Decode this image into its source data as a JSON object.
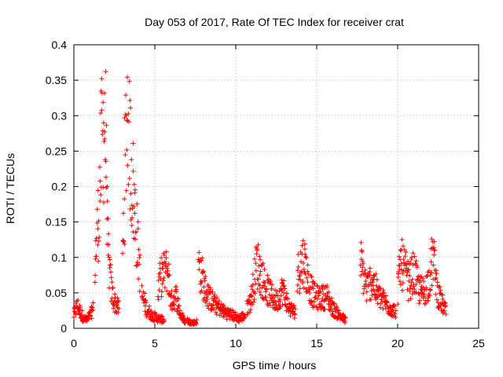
{
  "chart_data": {
    "type": "scatter",
    "title": "Day 053 of 2017, Rate Of TEC Index for receiver crat",
    "xlabel": "GPS time / hours",
    "ylabel": "ROTI / TECUs",
    "xlim": [
      0,
      25
    ],
    "ylim": [
      0,
      0.4
    ],
    "x_ticks": [
      "0",
      "5",
      "10",
      "15",
      "20",
      "25"
    ],
    "y_ticks": [
      "0",
      "0.05",
      "0.1",
      "0.15",
      "0.2",
      "0.25",
      "0.3",
      "0.35",
      "0.4"
    ],
    "grid": true,
    "marker": "plus",
    "marker_color": "#ff0000",
    "segments": [
      {
        "x": [
          0.0,
          0.2,
          0.4,
          0.6,
          0.8,
          1.0,
          1.2
        ],
        "y": [
          0.02,
          0.035,
          0.025,
          0.015,
          0.012,
          0.02,
          0.03
        ]
      },
      {
        "x": [
          1.3,
          1.5,
          1.7,
          1.8,
          1.9,
          2.0,
          2.1,
          2.3,
          2.5,
          2.8
        ],
        "y": [
          0.1,
          0.16,
          0.27,
          0.3,
          0.33,
          0.25,
          0.12,
          0.06,
          0.04,
          0.03
        ]
      },
      {
        "x": [
          3.0,
          3.2,
          3.35,
          3.5,
          3.7,
          3.9,
          4.1
        ],
        "y": [
          0.1,
          0.28,
          0.355,
          0.26,
          0.2,
          0.14,
          0.08
        ]
      },
      {
        "x": [
          4.2,
          4.5,
          4.8,
          5.2,
          5.6
        ],
        "y": [
          0.05,
          0.03,
          0.02,
          0.015,
          0.012
        ]
      },
      {
        "x": [
          5.2,
          5.4,
          5.8,
          6.0,
          6.3,
          6.6,
          6.9
        ],
        "y": [
          0.06,
          0.08,
          0.09,
          0.04,
          0.05,
          0.02,
          0.01
        ]
      },
      {
        "x": [
          7.0,
          7.3,
          7.6
        ],
        "y": [
          0.012,
          0.008,
          0.01
        ]
      },
      {
        "x": [
          7.7,
          7.9,
          8.1,
          8.4,
          8.8,
          9.3,
          9.8,
          10.2,
          10.6
        ],
        "y": [
          0.1,
          0.08,
          0.06,
          0.045,
          0.035,
          0.025,
          0.02,
          0.015,
          0.02
        ]
      },
      {
        "x": [
          10.7,
          11.0,
          11.3,
          11.6,
          11.9,
          12.2,
          12.5,
          12.9,
          13.3,
          13.7
        ],
        "y": [
          0.03,
          0.05,
          0.1,
          0.08,
          0.06,
          0.05,
          0.04,
          0.06,
          0.03,
          0.025
        ]
      },
      {
        "x": [
          13.8,
          14.0,
          14.2,
          14.5,
          14.8,
          15.2,
          15.6,
          16.0,
          16.4,
          16.8
        ],
        "y": [
          0.08,
          0.095,
          0.105,
          0.07,
          0.05,
          0.045,
          0.05,
          0.03,
          0.02,
          0.012
        ]
      },
      {
        "x": [
          17.7,
          17.9,
          18.1,
          18.4,
          18.8,
          19.2,
          19.6,
          19.9
        ],
        "y": [
          0.1,
          0.08,
          0.06,
          0.075,
          0.05,
          0.04,
          0.03,
          0.025
        ]
      },
      {
        "x": [
          20.0,
          20.2,
          20.4,
          20.7,
          21.0,
          21.3,
          21.6,
          21.9,
          22.2,
          22.5,
          22.8,
          23.0
        ],
        "y": [
          0.06,
          0.1,
          0.09,
          0.07,
          0.085,
          0.06,
          0.055,
          0.07,
          0.11,
          0.05,
          0.035,
          0.025
        ]
      }
    ]
  }
}
